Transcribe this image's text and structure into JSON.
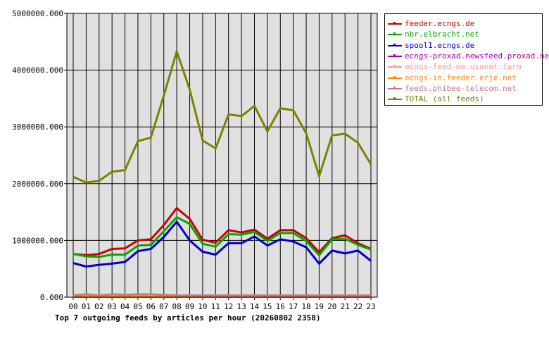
{
  "chart_data": {
    "type": "line",
    "title": "Top 7 outgoing feeds by articles per hour (20260802 2358)",
    "xlabel": "",
    "ylabel": "",
    "x": [
      "00",
      "01",
      "02",
      "03",
      "04",
      "05",
      "06",
      "07",
      "08",
      "09",
      "10",
      "11",
      "12",
      "13",
      "14",
      "15",
      "16",
      "17",
      "18",
      "19",
      "20",
      "21",
      "22",
      "23"
    ],
    "ylim": [
      0,
      5000000
    ],
    "yticks": [
      "0.000",
      "1000000.000",
      "2000000.000",
      "3000000.000",
      "4000000.000",
      "5000000.000"
    ],
    "ytick_values": [
      0,
      1000000,
      2000000,
      3000000,
      4000000,
      5000000
    ],
    "grid": true,
    "legend_position": "right",
    "series": [
      {
        "name": "feeder.ecngs.de",
        "color": "#cc0000",
        "values": [
          760000,
          740000,
          760000,
          850000,
          860000,
          1000000,
          1020000,
          1270000,
          1570000,
          1380000,
          1010000,
          960000,
          1180000,
          1140000,
          1190000,
          1030000,
          1180000,
          1180000,
          1040000,
          790000,
          1040000,
          1090000,
          950000,
          850000
        ]
      },
      {
        "name": "nbr.elbracht.net",
        "color": "#00aa00",
        "values": [
          760000,
          720000,
          710000,
          750000,
          750000,
          910000,
          920000,
          1160000,
          1410000,
          1290000,
          940000,
          890000,
          1110000,
          1100000,
          1150000,
          990000,
          1130000,
          1130000,
          990000,
          740000,
          1020000,
          1030000,
          920000,
          840000
        ]
      },
      {
        "name": "spool1.ecngs.de",
        "color": "#0000cc",
        "values": [
          600000,
          540000,
          570000,
          590000,
          620000,
          810000,
          850000,
          1060000,
          1330000,
          1000000,
          800000,
          750000,
          950000,
          950000,
          1070000,
          910000,
          1020000,
          980000,
          880000,
          590000,
          820000,
          770000,
          820000,
          640000
        ]
      },
      {
        "name": "ecngs-proxad.newsfeed.proxad.net",
        "color": "#aa00aa",
        "values": [
          10000,
          10000,
          10000,
          10000,
          10000,
          10000,
          10000,
          10000,
          10000,
          10000,
          10000,
          10000,
          10000,
          10000,
          10000,
          10000,
          10000,
          10000,
          10000,
          10000,
          10000,
          10000,
          10000,
          10000
        ]
      },
      {
        "name": "ecngs-feed-me.usenet.farm",
        "color": "#ff9999",
        "values": [
          20000,
          40000,
          30000,
          40000,
          30000,
          40000,
          40000,
          30000,
          20000,
          20000,
          20000,
          20000,
          20000,
          20000,
          20000,
          20000,
          20000,
          20000,
          20000,
          20000,
          20000,
          20000,
          20000,
          20000
        ]
      },
      {
        "name": "ecngs-in.feeder.erje.net",
        "color": "#ff8800",
        "values": [
          5000,
          5000,
          5000,
          5000,
          5000,
          5000,
          5000,
          5000,
          5000,
          5000,
          5000,
          5000,
          5000,
          5000,
          5000,
          5000,
          5000,
          5000,
          5000,
          5000,
          5000,
          5000,
          5000,
          5000
        ]
      },
      {
        "name": "feeds.phibee-telecom.net",
        "color": "#cc7777",
        "values": [
          30000,
          50000,
          30000,
          50000,
          40000,
          50000,
          50000,
          40000,
          30000,
          30000,
          30000,
          30000,
          30000,
          30000,
          30000,
          30000,
          30000,
          30000,
          30000,
          30000,
          30000,
          30000,
          30000,
          30000
        ]
      },
      {
        "name": "TOTAL (all feeds)",
        "color": "#808000",
        "values": [
          2120000,
          2020000,
          2050000,
          2210000,
          2240000,
          2750000,
          2810000,
          3550000,
          4330000,
          3660000,
          2760000,
          2620000,
          3220000,
          3190000,
          3370000,
          2920000,
          3330000,
          3290000,
          2890000,
          2130000,
          2850000,
          2880000,
          2720000,
          2340000
        ]
      }
    ]
  }
}
